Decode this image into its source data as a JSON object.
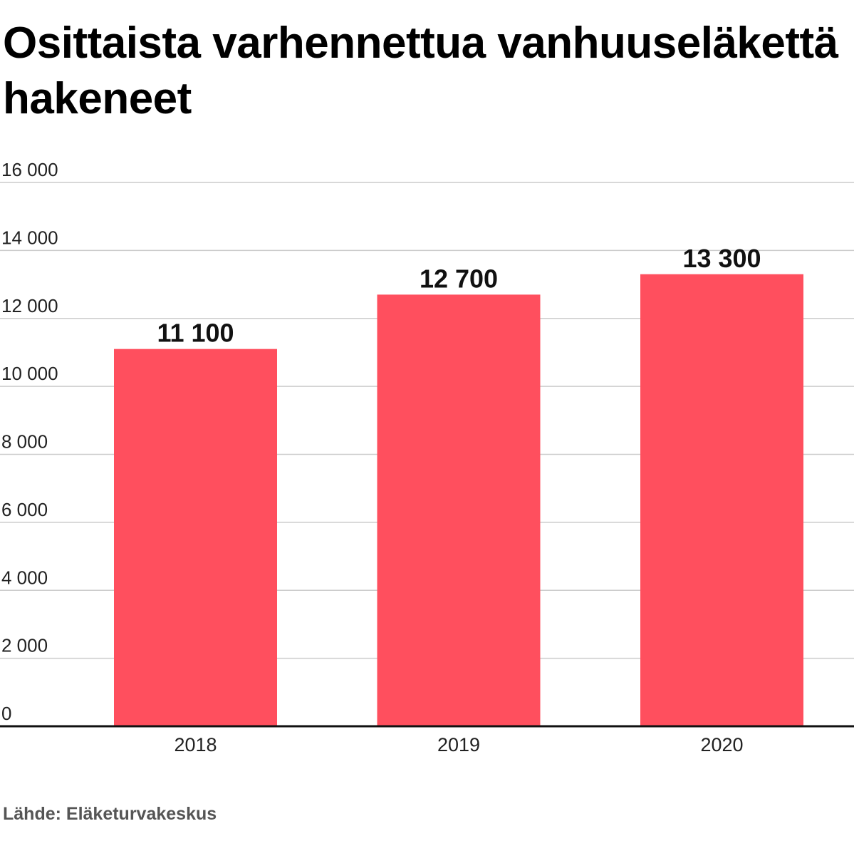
{
  "chart_data": {
    "type": "bar",
    "title": "Osittaista varhennettua vanhuuseläkettä hakeneet",
    "categories": [
      "2018",
      "2019",
      "2020"
    ],
    "values": [
      11100,
      12700,
      13300
    ],
    "value_labels": [
      "11 100",
      "12 700",
      "13 300"
    ],
    "ylim": [
      0,
      16000
    ],
    "yticks": [
      0,
      2000,
      4000,
      6000,
      8000,
      10000,
      12000,
      14000,
      16000
    ],
    "ytick_labels": [
      "0",
      "2 000",
      "4 000",
      "6 000",
      "8 000",
      "10 000",
      "12 000",
      "14 000",
      "16 000"
    ],
    "xlabel": "",
    "ylabel": "",
    "grid": true,
    "legend": false,
    "bar_color": "#ff4f5e",
    "source": "Lähde: Eläketurvakeskus"
  }
}
